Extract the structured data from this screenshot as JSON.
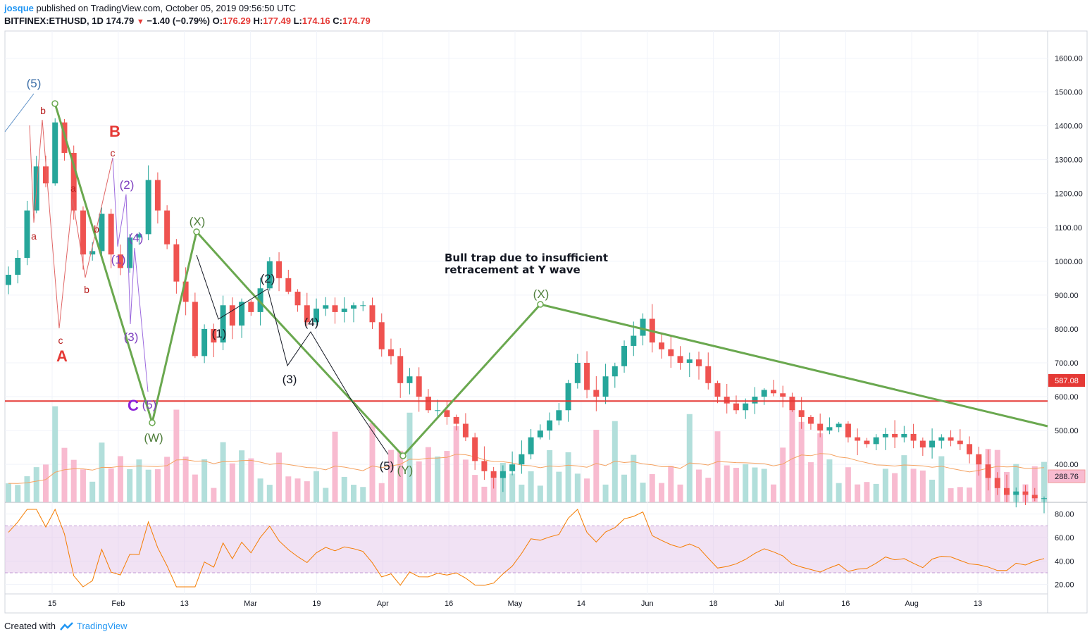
{
  "header": {
    "user": "josque",
    "published": "published on TradingView.com, October 05, 2019 09:56:50 UTC",
    "symbol": "BITFINEX:ETHUSD, 1D",
    "last": "174.79",
    "change": "−1.40 (−0.79%)",
    "o_label": "O:",
    "o_value": "176.29",
    "h_label": "H:",
    "h_value": "177.49",
    "l_label": "L:",
    "l_value": "174.16",
    "c_label": "C:",
    "c_value": "174.79"
  },
  "footer": {
    "created_with": "Created with",
    "brand": "TradingView"
  },
  "colors": {
    "up": "#26a69a",
    "down": "#ef5350",
    "volume_up": "#b2dfdb",
    "volume_down": "#f8bbd0",
    "wave_line": "#6aa84f",
    "resistance": "#e53935",
    "rsi": "#f57c00",
    "rsi_band": "#e1bee7",
    "ma": "#f4a261"
  },
  "annotation": "Bull trap due to insufficient\nretracement at Y wave",
  "chart_data": [
    {
      "type": "candlestick",
      "x_axis": {
        "tick_labels": [
          "15",
          "Feb",
          "13",
          "Mar",
          "19",
          "Apr",
          "16",
          "May",
          "14",
          "Jun",
          "18",
          "Jul",
          "16",
          "Aug",
          "13"
        ]
      },
      "y_axis": {
        "tick_labels": [
          "400.00",
          "500.00",
          "600.00",
          "700.00",
          "800.00",
          "900.00",
          "1000.00",
          "1100.00",
          "1200.00",
          "1300.00",
          "1400.00",
          "1500.00",
          "1600.00"
        ],
        "ylim": [
          288,
          1680
        ]
      },
      "price_labels": {
        "resistance": "587.08",
        "current": "288.76"
      },
      "resistance_level": 587.08,
      "closes": [
        960,
        1010,
        1150,
        1280,
        1230,
        1410,
        1320,
        1150,
        1020,
        1030,
        1140,
        1020,
        980,
        1070,
        1080,
        1240,
        1150,
        1050,
        940,
        880,
        720,
        800,
        760,
        870,
        810,
        880,
        850,
        920,
        1000,
        950,
        910,
        870,
        820,
        860,
        870,
        850,
        860,
        870,
        870,
        820,
        740,
        720,
        640,
        660,
        600,
        560,
        560,
        540,
        520,
        480,
        410,
        380,
        360,
        380,
        400,
        430,
        480,
        500,
        530,
        560,
        640,
        700,
        620,
        600,
        660,
        690,
        750,
        780,
        830,
        760,
        740,
        720,
        700,
        710,
        690,
        640,
        600,
        580,
        560,
        580,
        600,
        620,
        610,
        600,
        560,
        540,
        520,
        500,
        510,
        520,
        480,
        470,
        460,
        480,
        490,
        480,
        490,
        470,
        450,
        470,
        480,
        470,
        460,
        430,
        400,
        360,
        330,
        310,
        320,
        310,
        300,
        300
      ]
    },
    {
      "type": "line",
      "name": "RSI",
      "y_axis": {
        "tick_labels": [
          "20.00",
          "40.00",
          "60.00",
          "80.00"
        ],
        "ylim": [
          12,
          90
        ]
      },
      "band": [
        30,
        70
      ]
    }
  ],
  "waves": {
    "top_5": "(5)",
    "b1": "b",
    "a1": "a",
    "c1": "c",
    "A": "A",
    "b2": "b",
    "a2": "a",
    "b3": "b",
    "B": "B",
    "c2": "c",
    "p2": "(2)",
    "p4": "(4)",
    "p1": "(1)",
    "p3": "(3)",
    "C": "C",
    "p5": "(5)",
    "W": "(W)",
    "X1": "(X)",
    "k1": "(1)",
    "k2": "(2)",
    "k3": "(3)",
    "k4": "(4)",
    "k5": "(5)",
    "Y": "(Y)",
    "X2": "(X)"
  }
}
